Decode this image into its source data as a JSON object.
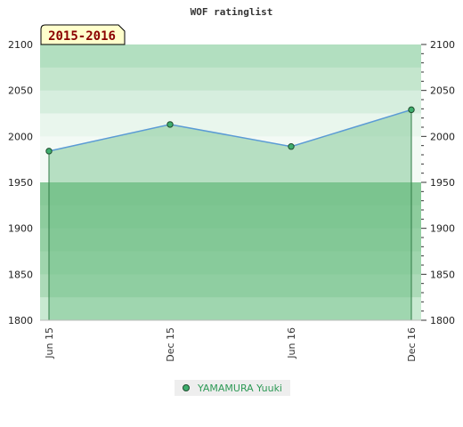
{
  "chart_data": {
    "type": "line",
    "title": "WOF ratinglist",
    "period_label": "2015-2016",
    "categories": [
      "Jun 15",
      "Dec 15",
      "Jun 16",
      "Dec 16"
    ],
    "series": [
      {
        "name": "YAMAMURA Yuuki",
        "values": [
          1984,
          2013,
          1989,
          2029
        ]
      }
    ],
    "ylim": [
      1800,
      2100
    ],
    "yticks": [
      1800,
      1850,
      1900,
      1950,
      2000,
      2050,
      2100
    ],
    "ytick_labels": [
      "1800",
      "1850",
      "1900",
      "1950",
      "2000",
      "2050",
      "2100"
    ],
    "grid": true,
    "legend_position": "bottom-center",
    "colors": {
      "line": "#5b9bd5",
      "marker_fill": "#3fae6e",
      "area_fill": "#8fcea0",
      "band_light": "#e6f4ea",
      "band_dark": "#6cbf86",
      "legend_text": "#2e9a56",
      "badge_fill": "#ffffcc",
      "badge_text": "#8b0000"
    }
  }
}
